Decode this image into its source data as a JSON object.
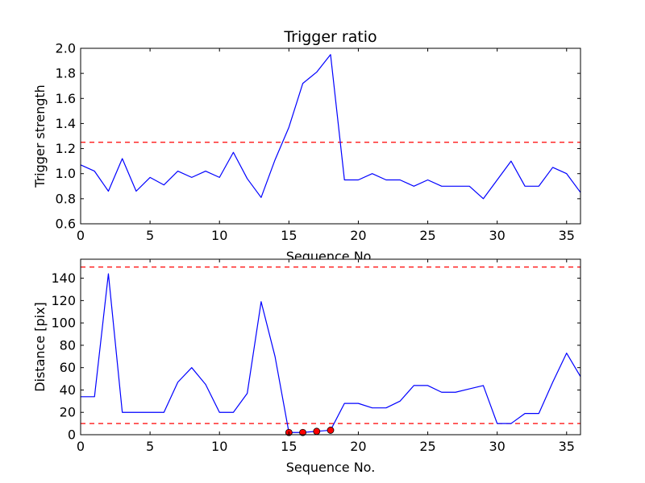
{
  "colors": {
    "series": "#0000ff",
    "threshold": "#ff0000",
    "marker_fill": "#ff0000",
    "marker_edge": "#000000",
    "background": "#ffffff"
  },
  "chart_data": [
    {
      "type": "line",
      "title": "Trigger ratio",
      "xlabel": "Sequence No.",
      "ylabel": "Trigger strength",
      "xlim": [
        0,
        36
      ],
      "ylim": [
        0.6,
        2.0
      ],
      "xticks": [
        0,
        5,
        10,
        15,
        20,
        25,
        30,
        35
      ],
      "yticks": [
        0.6,
        0.8,
        1.0,
        1.2,
        1.4,
        1.6,
        1.8,
        2.0
      ],
      "ytick_decimals": 1,
      "x": [
        0,
        1,
        2,
        3,
        4,
        5,
        6,
        7,
        8,
        9,
        10,
        11,
        12,
        13,
        14,
        15,
        16,
        17,
        18,
        19,
        20,
        21,
        22,
        23,
        24,
        25,
        26,
        27,
        28,
        29,
        30,
        31,
        32,
        33,
        34,
        35,
        36
      ],
      "series": [
        {
          "values": [
            1.07,
            1.02,
            0.86,
            1.12,
            0.86,
            0.97,
            0.91,
            1.02,
            0.97,
            1.02,
            0.97,
            1.17,
            0.96,
            0.81,
            1.11,
            1.37,
            1.72,
            1.81,
            1.95,
            0.95,
            0.95,
            1.0,
            0.95,
            0.95,
            0.9,
            0.95,
            0.9,
            0.9,
            0.9,
            0.8,
            0.95,
            1.1,
            0.9,
            0.9,
            1.05,
            1.0,
            0.85
          ]
        }
      ],
      "thresholds": [
        1.25
      ],
      "markers": null,
      "grid": false
    },
    {
      "type": "line",
      "title": "",
      "xlabel": "Sequence No.",
      "ylabel": "Distance [pix]",
      "xlim": [
        0,
        36
      ],
      "ylim": [
        0,
        157
      ],
      "xticks": [
        0,
        5,
        10,
        15,
        20,
        25,
        30,
        35
      ],
      "yticks": [
        0,
        20,
        40,
        60,
        80,
        100,
        120,
        140
      ],
      "ytick_decimals": 0,
      "x": [
        0,
        1,
        2,
        3,
        4,
        5,
        6,
        7,
        8,
        9,
        10,
        11,
        12,
        13,
        14,
        15,
        16,
        17,
        18,
        19,
        20,
        21,
        22,
        23,
        24,
        25,
        26,
        27,
        28,
        29,
        30,
        31,
        32,
        33,
        34,
        35,
        36
      ],
      "series": [
        {
          "values": [
            34,
            34,
            144,
            20,
            20,
            20,
            20,
            47,
            60,
            45,
            20,
            20,
            37,
            119,
            70,
            2,
            2,
            3,
            4,
            28,
            28,
            24,
            24,
            30,
            44,
            44,
            38,
            38,
            41,
            44,
            10,
            10,
            19,
            19,
            47,
            73,
            52
          ]
        }
      ],
      "thresholds": [
        10,
        150
      ],
      "markers": {
        "x": [
          15,
          16,
          17,
          18
        ],
        "y": [
          2,
          2,
          3,
          4
        ]
      },
      "grid": false
    }
  ]
}
